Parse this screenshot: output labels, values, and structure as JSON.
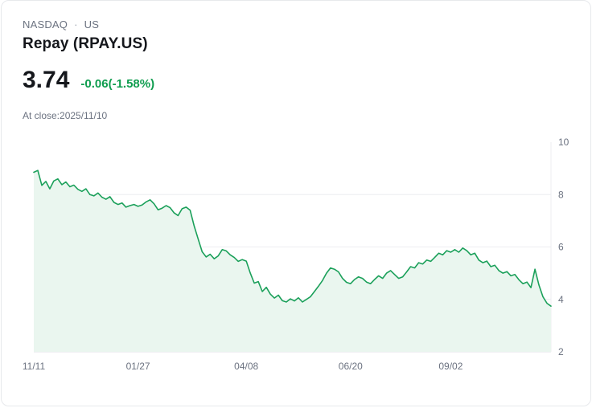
{
  "header": {
    "exchange": "NASDAQ",
    "separator": "·",
    "region": "US",
    "name": "Repay (RPAY.US)"
  },
  "quote": {
    "price": "3.74",
    "change": "-0.06(-1.58%)",
    "as_of": "At close:2025/11/10"
  },
  "colors": {
    "line": "#1ba05a",
    "fill": "#eaf6ef",
    "change": "#0f9d4f",
    "grid": "#eceef1",
    "axis": "#dcdfe4",
    "tick_text": "#6b7280"
  },
  "chart_data": {
    "type": "area",
    "title": "RPAY.US 1-year price chart",
    "x_ticks": [
      "11/11",
      "01/27",
      "04/08",
      "06/20",
      "09/02"
    ],
    "x_tick_idx": [
      0,
      26,
      53,
      79,
      104
    ],
    "y_ticks": [
      10,
      8,
      6,
      4,
      2
    ],
    "ylim": [
      2,
      10
    ],
    "values": [
      8.85,
      8.92,
      8.35,
      8.5,
      8.22,
      8.52,
      8.6,
      8.38,
      8.48,
      8.3,
      8.36,
      8.2,
      8.12,
      8.22,
      8.0,
      7.95,
      8.06,
      7.9,
      7.82,
      7.92,
      7.7,
      7.62,
      7.68,
      7.52,
      7.58,
      7.62,
      7.55,
      7.6,
      7.72,
      7.8,
      7.65,
      7.42,
      7.48,
      7.58,
      7.5,
      7.3,
      7.2,
      7.46,
      7.52,
      7.4,
      6.8,
      6.3,
      5.82,
      5.62,
      5.72,
      5.55,
      5.66,
      5.9,
      5.85,
      5.7,
      5.6,
      5.45,
      5.52,
      5.46,
      5.0,
      4.62,
      4.68,
      4.3,
      4.46,
      4.2,
      4.05,
      4.16,
      3.95,
      3.9,
      4.02,
      3.94,
      4.06,
      3.9,
      4.0,
      4.1,
      4.3,
      4.5,
      4.72,
      5.0,
      5.2,
      5.15,
      5.05,
      4.8,
      4.65,
      4.6,
      4.76,
      4.86,
      4.8,
      4.66,
      4.6,
      4.76,
      4.9,
      4.8,
      5.0,
      5.1,
      4.95,
      4.8,
      4.86,
      5.05,
      5.25,
      5.2,
      5.4,
      5.35,
      5.5,
      5.45,
      5.6,
      5.76,
      5.7,
      5.86,
      5.8,
      5.9,
      5.8,
      5.96,
      5.86,
      5.7,
      5.76,
      5.5,
      5.4,
      5.46,
      5.25,
      5.3,
      5.1,
      5.0,
      5.06,
      4.9,
      4.95,
      4.75,
      4.6,
      4.66,
      4.45,
      5.15,
      4.55,
      4.1,
      3.85,
      3.74
    ]
  }
}
